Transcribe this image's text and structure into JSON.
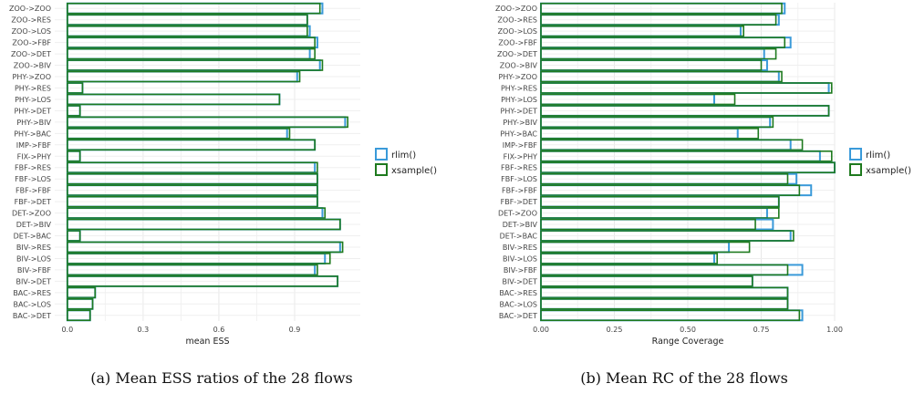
{
  "colors": {
    "rlim": "#3a9ad9",
    "xsample": "#1e7a1e"
  },
  "captions": [
    "(a) Mean ESS ratios of the 28 flows",
    "(b) Mean RC of the 28 flows"
  ],
  "chart_data": [
    {
      "type": "bar",
      "orientation": "horizontal",
      "xlabel": "mean ESS",
      "xlim": [
        -0.05,
        1.16
      ],
      "xticks": [
        "0.0",
        "0.3",
        "0.6",
        "0.9"
      ],
      "xtick_values": [
        0,
        0.3,
        0.6,
        0.9
      ],
      "categories": [
        "ZOO->ZOO",
        "ZOO->RES",
        "ZOO->LOS",
        "ZOO->FBF",
        "ZOO->DET",
        "ZOO->BIV",
        "PHY->ZOO",
        "PHY->RES",
        "PHY->LOS",
        "PHY->DET",
        "PHY->BIV",
        "PHY->BAC",
        "IMP->FBF",
        "FIX->PHY",
        "FBF->RES",
        "FBF->LOS",
        "FBF->FBF",
        "FBF->DET",
        "DET->ZOO",
        "DET->BIV",
        "DET->BAC",
        "BIV->RES",
        "BIV->LOS",
        "BIV->FBF",
        "BIV->DET",
        "BAC->RES",
        "BAC->LOS",
        "BAC->DET"
      ],
      "series": [
        {
          "name": "rlim()",
          "values": [
            1.01,
            0.95,
            0.96,
            0.99,
            0.96,
            1.0,
            0.91,
            0.06,
            0.84,
            0.05,
            1.1,
            0.87,
            0.98,
            0.05,
            0.98,
            0.99,
            0.99,
            0.99,
            1.01,
            1.08,
            0.05,
            1.08,
            1.02,
            0.98,
            1.07,
            0.11,
            0.1,
            0.09
          ]
        },
        {
          "name": "xsample()",
          "values": [
            1.0,
            0.95,
            0.95,
            0.98,
            0.98,
            1.01,
            0.92,
            0.06,
            0.84,
            0.05,
            1.11,
            0.88,
            0.98,
            0.05,
            0.99,
            0.99,
            0.99,
            0.99,
            1.02,
            1.08,
            0.05,
            1.09,
            1.04,
            0.99,
            1.07,
            0.11,
            0.1,
            0.09
          ]
        }
      ],
      "legend": "right",
      "grid": true
    },
    {
      "type": "bar",
      "orientation": "horizontal",
      "xlabel": "Range Coverage",
      "xlim": [
        0,
        1.0
      ],
      "xticks": [
        "0.00",
        "0.25",
        "0.50",
        "0.75",
        "1.00"
      ],
      "xtick_values": [
        0,
        0.25,
        0.5,
        0.75,
        1.0
      ],
      "categories": [
        "ZOO->ZOO",
        "ZOO->RES",
        "ZOO->LOS",
        "ZOO->FBF",
        "ZOO->DET",
        "ZOO->BIV",
        "PHY->ZOO",
        "PHY->RES",
        "PHY->LOS",
        "PHY->DET",
        "PHY->BIV",
        "PHY->BAC",
        "IMP->FBF",
        "FIX->PHY",
        "FBF->RES",
        "FBF->LOS",
        "FBF->FBF",
        "FBF->DET",
        "DET->ZOO",
        "DET->BIV",
        "DET->BAC",
        "BIV->RES",
        "BIV->LOS",
        "BIV->FBF",
        "BIV->DET",
        "BAC->RES",
        "BAC->LOS",
        "BAC->DET"
      ],
      "series": [
        {
          "name": "rlim()",
          "values": [
            0.83,
            0.81,
            0.68,
            0.85,
            0.76,
            0.77,
            0.81,
            0.98,
            0.59,
            0.98,
            0.78,
            0.67,
            0.85,
            0.95,
            1.0,
            0.87,
            0.92,
            0.81,
            0.77,
            0.79,
            0.85,
            0.64,
            0.59,
            0.89,
            0.72,
            0.84,
            0.84,
            0.89
          ]
        },
        {
          "name": "xsample()",
          "values": [
            0.82,
            0.8,
            0.69,
            0.83,
            0.8,
            0.75,
            0.82,
            0.99,
            0.66,
            0.98,
            0.79,
            0.74,
            0.89,
            0.99,
            1.0,
            0.84,
            0.88,
            0.81,
            0.81,
            0.73,
            0.86,
            0.71,
            0.6,
            0.84,
            0.72,
            0.84,
            0.84,
            0.88
          ]
        }
      ],
      "legend": "right",
      "grid": true
    }
  ]
}
